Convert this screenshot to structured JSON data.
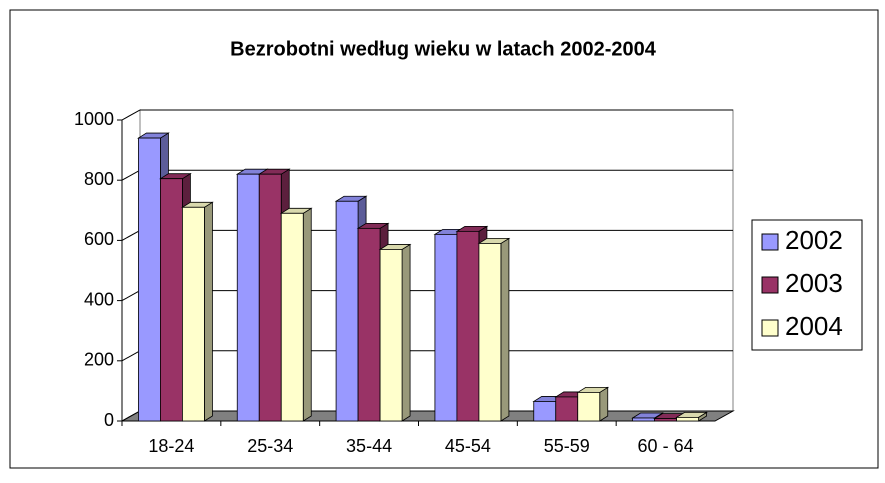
{
  "chart_data": {
    "type": "bar3d",
    "title": "Bezrobotni według wieku w latach 2002-2004",
    "categories": [
      "18-24",
      "25-34",
      "35-44",
      "45-54",
      "55-59",
      "60 - 64"
    ],
    "series": [
      {
        "name": "2002",
        "color": "#9999ff",
        "values": [
          940,
          820,
          730,
          620,
          65,
          10
        ]
      },
      {
        "name": "2003",
        "color": "#993366",
        "values": [
          805,
          820,
          640,
          630,
          80,
          8
        ]
      },
      {
        "name": "2004",
        "color": "#ffffcc",
        "values": [
          710,
          690,
          570,
          590,
          95,
          12
        ]
      }
    ],
    "ylim": [
      0,
      1000
    ],
    "yticks": [
      0,
      200,
      400,
      600,
      800,
      1000
    ],
    "grid": true,
    "legend": "right"
  }
}
